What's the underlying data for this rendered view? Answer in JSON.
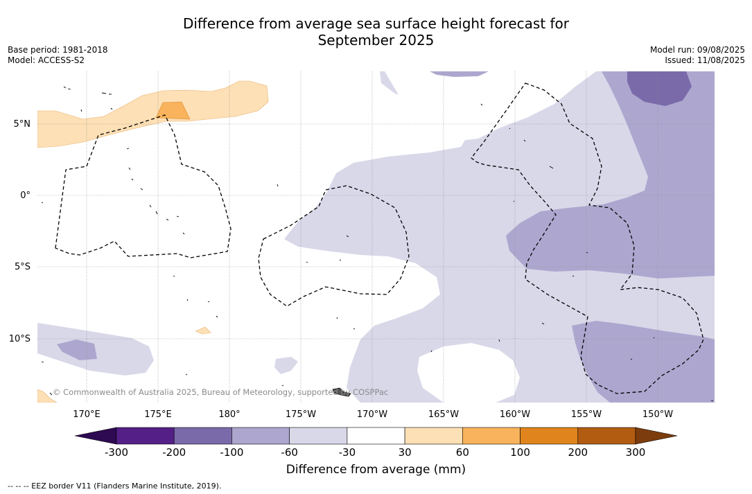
{
  "title_line1": "Difference from average sea surface height forecast for",
  "title_line2": "September 2025",
  "meta_left": {
    "base_period": "Base period: 1981-2018",
    "model": "Model: ACCESS-S2"
  },
  "meta_right": {
    "model_run": "Model run: 09/08/2025",
    "issued": "Issued: 11/08/2025"
  },
  "lon_ticks": [
    "170°E",
    "175°E",
    "180°",
    "175°W",
    "170°W",
    "165°W",
    "160°W",
    "155°W",
    "150°W"
  ],
  "lat_ticks": [
    "5°N",
    "0°",
    "5°S",
    "10°S"
  ],
  "copyright": "© Commonwealth of Australia 2025, Bureau of Meteorology, supported by COSPPac",
  "colorbar": {
    "title": "Difference from average (mm)",
    "labels": [
      "-300",
      "-200",
      "-100",
      "-60",
      "-30",
      "30",
      "60",
      "100",
      "200",
      "300"
    ],
    "colors": [
      "#541f87",
      "#7a6aaa",
      "#ada7cf",
      "#d8d8e9",
      "#ffffff",
      "#fde0b5",
      "#f8b35c",
      "#e0841d",
      "#b25c11"
    ],
    "under_color": "#2e0a52",
    "over_color": "#7d3c0d"
  },
  "legend_note": "--  --  -- EEZ border V11 (Flanders Marine Institute, 2019)."
}
